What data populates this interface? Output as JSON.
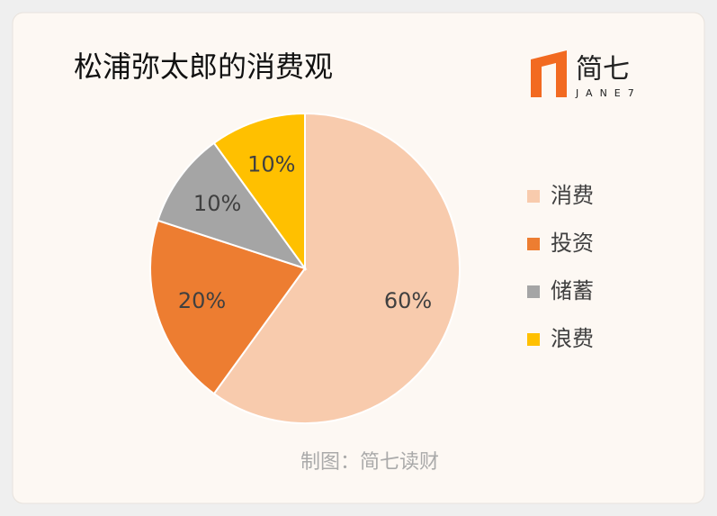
{
  "chart_data": {
    "type": "pie",
    "title": "松浦弥太郎的消费观",
    "categories": [
      "消费",
      "投资",
      "储蓄",
      "浪费"
    ],
    "values": [
      60,
      20,
      10,
      10
    ],
    "value_labels": [
      "60%",
      "20%",
      "10%",
      "10%"
    ],
    "colors": [
      "#f8cbad",
      "#ed7d31",
      "#a5a5a5",
      "#ffc000"
    ],
    "legend": "right",
    "source": "制图：简七读财"
  },
  "logo": {
    "text": "简七",
    "subtext": "JANE7"
  }
}
